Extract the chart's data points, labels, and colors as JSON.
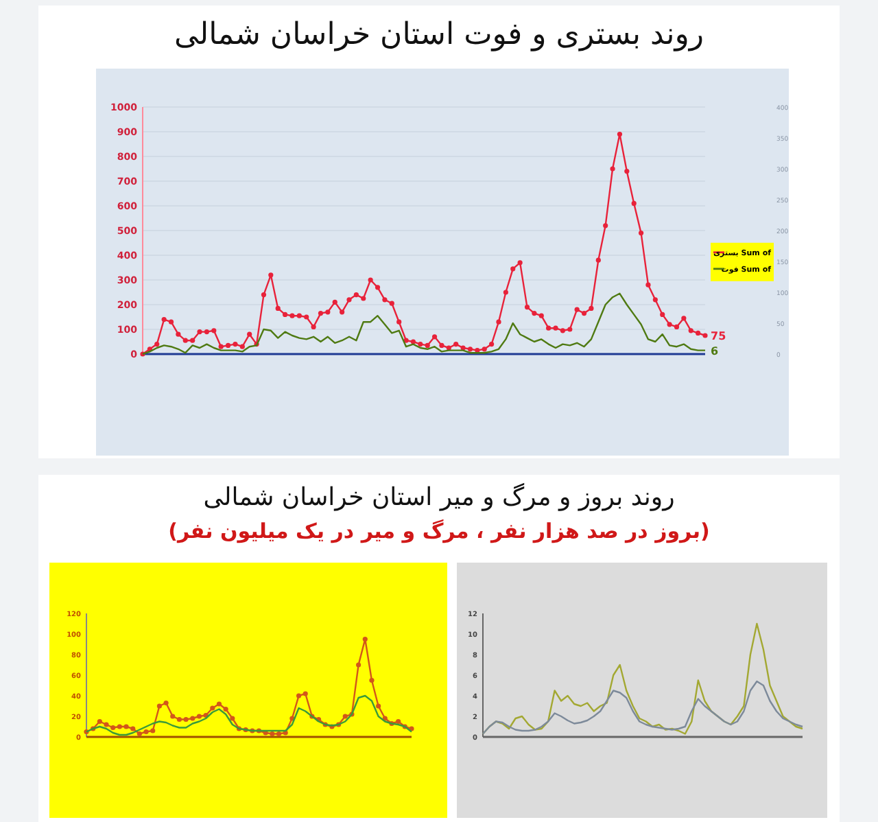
{
  "chart_data": [
    {
      "type": "line",
      "title": "روند بستری و فوت استان خراسان شمالی",
      "categories": [
        null,
        null,
        null,
        null,
        null,
        null,
        null,
        null,
        null,
        null,
        null,
        null,
        null,
        null,
        null,
        null,
        null,
        null,
        null,
        null,
        null,
        null,
        null,
        null,
        null,
        null,
        null,
        null,
        null,
        null,
        null,
        null,
        null,
        null,
        null,
        null,
        null,
        null,
        null,
        null,
        null,
        null,
        null,
        null,
        null,
        null,
        null,
        null,
        null,
        null,
        null,
        null,
        null,
        null,
        null,
        null,
        null,
        null,
        null,
        null,
        null,
        null,
        null,
        null,
        null,
        null,
        null,
        null,
        null,
        null,
        null,
        null,
        null,
        null,
        null,
        null,
        null,
        null,
        null,
        null
      ],
      "ylim": [
        0,
        1000
      ],
      "yticks": [
        0,
        100,
        200,
        300,
        400,
        500,
        600,
        700,
        800,
        900,
        1000
      ],
      "y2lim": [
        0,
        400
      ],
      "y2ticks": [
        0,
        50,
        100,
        150,
        200,
        250,
        300,
        350,
        400
      ],
      "grid": "y",
      "legend": "right",
      "series": [
        {
          "name": "Sum of بستری",
          "color": "#e8223a",
          "marker": "circle",
          "values": [
            0,
            20,
            40,
            140,
            130,
            80,
            55,
            55,
            90,
            90,
            95,
            30,
            35,
            40,
            30,
            80,
            40,
            240,
            320,
            185,
            160,
            155,
            155,
            150,
            110,
            165,
            170,
            210,
            170,
            220,
            240,
            225,
            300,
            270,
            220,
            205,
            130,
            55,
            50,
            40,
            35,
            70,
            35,
            25,
            40,
            25,
            20,
            15,
            20,
            40,
            130,
            250,
            345,
            370,
            190,
            165,
            155,
            105,
            105,
            95,
            100,
            180,
            165,
            185,
            380,
            520,
            750,
            890,
            740,
            610,
            490,
            280,
            220,
            160,
            120,
            110,
            145,
            95,
            85,
            75
          ],
          "value_labels": [
            null,
            null,
            null,
            null,
            null,
            null,
            null,
            null,
            null,
            null,
            null,
            null,
            null,
            null,
            null,
            null,
            null,
            null,
            null,
            null,
            null,
            null,
            null,
            null,
            null,
            null,
            null,
            null,
            null,
            null,
            null,
            null,
            null,
            null,
            null,
            null,
            null,
            null,
            null,
            null,
            null,
            null,
            null,
            null,
            null,
            null,
            null,
            null,
            null,
            null,
            null,
            null,
            null,
            null,
            null,
            null,
            null,
            null,
            null,
            null,
            null,
            null,
            null,
            null,
            null,
            null,
            null,
            null,
            null,
            null,
            null,
            null,
            null,
            null,
            null,
            null,
            null,
            null,
            null,
            "75"
          ]
        },
        {
          "name": "Sum of فوت",
          "color": "#4f7a12",
          "marker": "none",
          "axis": "y2",
          "values": [
            0,
            4,
            10,
            14,
            12,
            8,
            2,
            14,
            10,
            16,
            10,
            6,
            6,
            6,
            4,
            12,
            14,
            40,
            38,
            26,
            36,
            30,
            26,
            24,
            28,
            20,
            28,
            18,
            22,
            28,
            22,
            52,
            52,
            62,
            48,
            34,
            38,
            12,
            16,
            10,
            8,
            12,
            4,
            6,
            6,
            6,
            2,
            2,
            2,
            4,
            8,
            24,
            50,
            32,
            26,
            20,
            24,
            16,
            10,
            16,
            14,
            18,
            12,
            24,
            52,
            80,
            92,
            98,
            80,
            64,
            48,
            24,
            20,
            32,
            14,
            12,
            16,
            8,
            6,
            6
          ],
          "value_labels": [
            null,
            null,
            null,
            null,
            null,
            null,
            null,
            null,
            null,
            null,
            null,
            null,
            null,
            null,
            null,
            null,
            null,
            null,
            null,
            null,
            null,
            null,
            null,
            null,
            null,
            null,
            null,
            null,
            null,
            null,
            null,
            null,
            null,
            null,
            null,
            null,
            null,
            null,
            null,
            null,
            null,
            null,
            null,
            null,
            null,
            null,
            null,
            null,
            null,
            null,
            null,
            null,
            null,
            null,
            null,
            null,
            null,
            null,
            null,
            null,
            null,
            null,
            null,
            null,
            null,
            null,
            null,
            null,
            null,
            null,
            null,
            null,
            null,
            null,
            null,
            null,
            null,
            null,
            null,
            "6"
          ]
        }
      ]
    },
    {
      "type": "line",
      "title": "روند بروز و مرگ و میر استان خراسان شمالی",
      "subtitle": "(بروز در صد هزار نفر ، مرگ و میر در یک میلیون نفر)",
      "categories": [
        null,
        null,
        null,
        null,
        null,
        null,
        null,
        null,
        null,
        null,
        null,
        null,
        null,
        null,
        null,
        null,
        null,
        null,
        null,
        null,
        null,
        null,
        null,
        null,
        null,
        null,
        null,
        null,
        null,
        null,
        null,
        null,
        null,
        null,
        null,
        null,
        null,
        null,
        null,
        null,
        null,
        null,
        null,
        null,
        null,
        null,
        null,
        null,
        null,
        null
      ],
      "ylim": [
        0,
        120
      ],
      "yticks": [
        0,
        20,
        40,
        60,
        80,
        100,
        120
      ],
      "series": [
        {
          "color": "#d2561a",
          "marker": "circle",
          "values": [
            5,
            8,
            15,
            12,
            9,
            10,
            10,
            8,
            3,
            5,
            6,
            30,
            33,
            20,
            17,
            17,
            18,
            20,
            21,
            28,
            32,
            27,
            18,
            8,
            7,
            6,
            6,
            4,
            3,
            3,
            4,
            18,
            40,
            42,
            20,
            17,
            12,
            10,
            12,
            20,
            22,
            70,
            95,
            55,
            30,
            18,
            13,
            15,
            10,
            8
          ]
        },
        {
          "color": "#3a9a3a",
          "marker": "none",
          "values": [
            5,
            8,
            10,
            8,
            4,
            2,
            2,
            4,
            7,
            10,
            13,
            15,
            14,
            11,
            9,
            9,
            13,
            15,
            18,
            24,
            27,
            22,
            12,
            8,
            7,
            6,
            6,
            6,
            6,
            6,
            6,
            12,
            28,
            25,
            20,
            15,
            12,
            11,
            12,
            15,
            22,
            38,
            40,
            35,
            20,
            15,
            13,
            12,
            10,
            5
          ]
        }
      ]
    },
    {
      "type": "line",
      "categories": [
        null,
        null,
        null,
        null,
        null,
        null,
        null,
        null,
        null,
        null,
        null,
        null,
        null,
        null,
        null,
        null,
        null,
        null,
        null,
        null,
        null,
        null,
        null,
        null,
        null,
        null,
        null,
        null,
        null,
        null,
        null,
        null,
        null,
        null,
        null,
        null,
        null,
        null,
        null,
        null,
        null,
        null,
        null,
        null,
        null,
        null,
        null,
        null,
        null,
        null
      ],
      "ylim": [
        0,
        12
      ],
      "yticks": [
        0,
        2,
        4,
        6,
        8,
        10,
        12
      ],
      "series": [
        {
          "color": "#a3a832",
          "values": [
            0.3,
            1,
            1.5,
            1.3,
            0.8,
            1.8,
            2,
            1.2,
            0.7,
            0.8,
            1.5,
            4.5,
            3.5,
            4,
            3.2,
            3,
            3.3,
            2.5,
            3,
            3.3,
            6,
            7,
            4.5,
            3,
            1.8,
            1.5,
            1,
            1.2,
            0.7,
            0.8,
            0.6,
            0.3,
            1.5,
            5.5,
            3.5,
            2.5,
            2,
            1.5,
            1.2,
            2,
            3,
            8,
            11,
            8.5,
            5,
            3.5,
            2,
            1.5,
            1,
            0.8
          ]
        },
        {
          "color": "#7d8a9a",
          "values": [
            0.3,
            1,
            1.5,
            1.4,
            1,
            0.7,
            0.6,
            0.6,
            0.7,
            1,
            1.5,
            2.3,
            2,
            1.6,
            1.3,
            1.4,
            1.6,
            2,
            2.5,
            3.5,
            4.5,
            4.3,
            3.8,
            2.5,
            1.5,
            1.2,
            1,
            0.9,
            0.8,
            0.7,
            0.8,
            1,
            2.5,
            3.7,
            3,
            2.5,
            2,
            1.5,
            1.2,
            1.5,
            2.5,
            4.5,
            5.4,
            5,
            3.5,
            2.5,
            1.8,
            1.5,
            1.2,
            1
          ]
        }
      ]
    }
  ]
}
